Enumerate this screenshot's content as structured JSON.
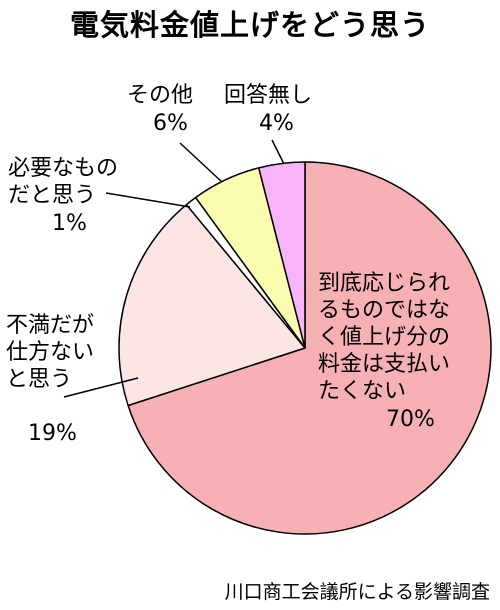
{
  "chart_data": {
    "type": "pie",
    "title": "電気料金値上げをどう思う",
    "slices": [
      {
        "label": "到底応じられるものではなく値上げ分の料金は支払いたくない",
        "value": 70,
        "value_label": "70%",
        "color": "#f7b0b4"
      },
      {
        "label": "不満だが仕方ないと思う",
        "value": 19,
        "value_label": "19%",
        "color": "#fbe5e5"
      },
      {
        "label": "必要なものだと思う",
        "value": 1,
        "value_label": "1%",
        "color": "#ffffff"
      },
      {
        "label": "その他",
        "value": 6,
        "value_label": "6%",
        "color": "#fafcb0"
      },
      {
        "label": "回答無し",
        "value": 4,
        "value_label": "4%",
        "color": "#f8b4f8"
      }
    ],
    "source": "川口商工会議所による影響調査"
  },
  "labels": {
    "s0_text": "到底応じられ\nるものではな\nく値上げ分の\n料金は支払い\nたくない",
    "s1_text": "不満だが\n仕方ない\nと思う",
    "s2_text": "必要なもの\nだと思う"
  }
}
